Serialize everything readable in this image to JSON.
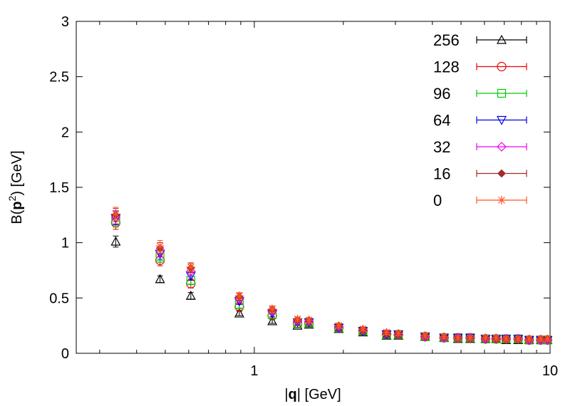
{
  "chart_data": {
    "type": "scatter",
    "title": "",
    "xlabel": "|q| [GeV]",
    "ylabel": "B(p²) [GeV]",
    "xscale": "log",
    "xlim": [
      0.25,
      10
    ],
    "ylim": [
      0,
      3
    ],
    "x_ticks": [
      1,
      10
    ],
    "x_tick_labels": [
      "1",
      "10"
    ],
    "y_ticks": [
      0,
      0.5,
      1,
      1.5,
      2,
      2.5,
      3
    ],
    "y_tick_labels": [
      "0",
      "0.5",
      "1",
      "1.5",
      "2",
      "2.5",
      "3"
    ],
    "grid": false,
    "legend_position": "top-right",
    "x": [
      0.34,
      0.48,
      0.61,
      0.89,
      1.15,
      1.4,
      1.53,
      1.93,
      2.33,
      2.8,
      3.07,
      3.78,
      4.38,
      4.88,
      5.37,
      6.05,
      6.57,
      7.1,
      7.8,
      8.5,
      9.3,
      9.8
    ],
    "series": [
      {
        "name": "256",
        "color": "#000000",
        "marker": "triangle-up",
        "values": [
          1.01,
          0.67,
          0.52,
          0.36,
          0.29,
          0.25,
          0.26,
          0.22,
          0.19,
          0.16,
          0.16,
          0.15,
          0.14,
          0.13,
          0.13,
          0.13,
          0.13,
          0.12,
          0.12,
          0.12,
          0.12,
          0.12
        ],
        "errors": [
          0.05,
          0.03,
          0.03,
          0.02,
          0.02,
          0.02,
          0.02,
          0.02,
          0.02,
          0.02,
          0.02,
          0.02,
          0.02,
          0.02,
          0.02,
          0.02,
          0.02,
          0.02,
          0.02,
          0.02,
          0.02,
          0.02
        ]
      },
      {
        "name": "128",
        "color": "#ee0000",
        "marker": "circle",
        "values": [
          1.18,
          0.84,
          0.63,
          0.42,
          0.34,
          0.27,
          0.27,
          0.23,
          0.2,
          0.17,
          0.17,
          0.15,
          0.14,
          0.14,
          0.14,
          0.13,
          0.13,
          0.13,
          0.13,
          0.12,
          0.12,
          0.12
        ],
        "errors": [
          0.06,
          0.05,
          0.04,
          0.03,
          0.03,
          0.02,
          0.02,
          0.02,
          0.02,
          0.02,
          0.02,
          0.02,
          0.02,
          0.02,
          0.02,
          0.02,
          0.02,
          0.02,
          0.02,
          0.02,
          0.02,
          0.02
        ]
      },
      {
        "name": "96",
        "color": "#00cc00",
        "marker": "square",
        "values": [
          1.2,
          0.87,
          0.66,
          0.44,
          0.35,
          0.27,
          0.27,
          0.23,
          0.2,
          0.17,
          0.17,
          0.15,
          0.14,
          0.14,
          0.14,
          0.13,
          0.13,
          0.13,
          0.13,
          0.12,
          0.12,
          0.12
        ],
        "errors": [
          0.06,
          0.05,
          0.04,
          0.03,
          0.03,
          0.02,
          0.02,
          0.02,
          0.02,
          0.02,
          0.02,
          0.02,
          0.02,
          0.02,
          0.02,
          0.02,
          0.02,
          0.02,
          0.02,
          0.02,
          0.02,
          0.02
        ]
      },
      {
        "name": "64",
        "color": "#0000dd",
        "marker": "triangle-down",
        "values": [
          1.22,
          0.9,
          0.7,
          0.47,
          0.36,
          0.28,
          0.28,
          0.23,
          0.2,
          0.17,
          0.17,
          0.15,
          0.14,
          0.14,
          0.14,
          0.13,
          0.13,
          0.13,
          0.13,
          0.12,
          0.12,
          0.12
        ],
        "errors": [
          0.06,
          0.05,
          0.04,
          0.03,
          0.03,
          0.02,
          0.02,
          0.02,
          0.02,
          0.02,
          0.02,
          0.02,
          0.02,
          0.02,
          0.02,
          0.02,
          0.02,
          0.02,
          0.02,
          0.02,
          0.02,
          0.02
        ]
      },
      {
        "name": "32",
        "color": "#ee00ee",
        "marker": "diamond",
        "values": [
          1.23,
          0.92,
          0.74,
          0.49,
          0.38,
          0.29,
          0.29,
          0.24,
          0.21,
          0.18,
          0.17,
          0.15,
          0.14,
          0.14,
          0.14,
          0.13,
          0.13,
          0.13,
          0.13,
          0.12,
          0.12,
          0.12
        ],
        "errors": [
          0.06,
          0.05,
          0.04,
          0.03,
          0.03,
          0.02,
          0.02,
          0.02,
          0.02,
          0.02,
          0.02,
          0.02,
          0.02,
          0.02,
          0.02,
          0.02,
          0.02,
          0.02,
          0.02,
          0.02,
          0.02,
          0.02
        ]
      },
      {
        "name": "16",
        "color": "#a52a2a",
        "marker": "filled-diamond",
        "values": [
          1.25,
          0.95,
          0.77,
          0.51,
          0.39,
          0.3,
          0.3,
          0.25,
          0.21,
          0.18,
          0.17,
          0.16,
          0.15,
          0.14,
          0.14,
          0.14,
          0.13,
          0.13,
          0.13,
          0.13,
          0.13,
          0.13
        ],
        "errors": [
          0.06,
          0.05,
          0.04,
          0.03,
          0.03,
          0.02,
          0.02,
          0.02,
          0.02,
          0.02,
          0.02,
          0.02,
          0.02,
          0.02,
          0.02,
          0.02,
          0.02,
          0.02,
          0.02,
          0.02,
          0.02,
          0.02
        ]
      },
      {
        "name": "0",
        "color": "#ff5522",
        "marker": "asterisk",
        "values": [
          1.26,
          0.97,
          0.78,
          0.52,
          0.4,
          0.31,
          0.3,
          0.25,
          0.22,
          0.19,
          0.18,
          0.16,
          0.15,
          0.14,
          0.14,
          0.14,
          0.14,
          0.13,
          0.13,
          0.13,
          0.13,
          0.13
        ],
        "errors": [
          0.06,
          0.05,
          0.04,
          0.03,
          0.03,
          0.02,
          0.02,
          0.02,
          0.02,
          0.02,
          0.02,
          0.02,
          0.02,
          0.02,
          0.02,
          0.02,
          0.02,
          0.02,
          0.02,
          0.02,
          0.02,
          0.02
        ]
      }
    ]
  }
}
